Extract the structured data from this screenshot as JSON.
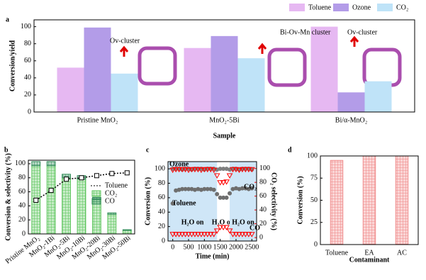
{
  "chart_data": [
    {
      "type": "bar",
      "label": "a",
      "categories": [
        "Pristine MnO₂",
        "MnO₂-5Bi",
        "Bi/α-MnO₂"
      ],
      "series": [
        {
          "name": "Toluene",
          "color": "#e6b8f2",
          "values": [
            52,
            75,
            100
          ]
        },
        {
          "name": "Ozone",
          "color": "#b39ce8",
          "values": [
            99,
            89,
            23
          ]
        },
        {
          "name": "CO₂",
          "color": "#bfe3f8",
          "values": [
            45,
            63,
            36
          ]
        }
      ],
      "ylim": [
        0,
        108
      ],
      "yticks": [
        0,
        20,
        40,
        60,
        80,
        100
      ],
      "ylabel": "Conversion/yield",
      "xlabel": "Sample",
      "legend": "top-right",
      "annotations": [
        "Ov-cluster",
        "Bi-Ov-Mn cluster",
        "Ov-cluster"
      ]
    },
    {
      "type": "combo",
      "label": "b",
      "categories": [
        "Pristine MnO₂",
        "MnO₂-1Bi",
        "MnO₂-5Bi",
        "MnO₂-10Bi",
        "MnO₂-20Bi",
        "MnO₂-30Bi",
        "MnO₂-50Bi"
      ],
      "series": [
        {
          "name": "Toluene",
          "color": "#000000",
          "kind": "line",
          "values": [
            48,
            62,
            78,
            80,
            83,
            86,
            87
          ]
        },
        {
          "name": "CO₂",
          "color": "#5cc45c",
          "kind": "bar",
          "values": [
            97,
            97,
            80,
            78,
            49,
            28,
            5
          ]
        },
        {
          "name": "CO",
          "color": "#2e8b57",
          "kind": "bar",
          "values": [
            6,
            6,
            5,
            5,
            3,
            2,
            1
          ]
        }
      ],
      "stacked": true,
      "hatch": true,
      "ylim": [
        0,
        105
      ],
      "yticks": [
        0,
        20,
        40,
        60,
        80,
        100
      ],
      "ylabel": "Conversion & selectivity (%)",
      "legend": "right"
    },
    {
      "type": "scatter",
      "label": "c",
      "x": [
        0,
        100,
        200,
        300,
        400,
        500,
        600,
        700,
        800,
        900,
        1000,
        1100,
        1200,
        1300,
        1400,
        1500,
        1600,
        1700,
        1800,
        1900,
        2000,
        2100,
        2200,
        2300,
        2400,
        2500
      ],
      "series": [
        {
          "name": "Ozone",
          "color": "#7f7f7f",
          "marker": "circle",
          "values": [
            100,
            100,
            100,
            99,
            100,
            100,
            99,
            100,
            100,
            100,
            99,
            100,
            100,
            100,
            99,
            100,
            100,
            100,
            99,
            100,
            100,
            99,
            100,
            100,
            100,
            99
          ]
        },
        {
          "name": "Toluene",
          "color": "#6e6e6e",
          "marker": "circle",
          "values": [
            52,
            70,
            71,
            72,
            72,
            72,
            72,
            71,
            72,
            71,
            72,
            72,
            72,
            71,
            65,
            60,
            60,
            60,
            66,
            72,
            73,
            72,
            73,
            73,
            72,
            73
          ]
        },
        {
          "name": "CO₂",
          "color": "#ff0000",
          "marker": "triangle-open",
          "axis": "y2",
          "values": [
            98,
            99,
            99,
            99,
            99,
            98,
            99,
            99,
            99,
            98,
            99,
            99,
            99,
            98,
            90,
            80,
            80,
            81,
            90,
            99,
            99,
            98,
            99,
            99,
            99,
            99
          ]
        },
        {
          "name": "CO",
          "color": "#ff0000",
          "marker": "triangle-open",
          "axis": "y2",
          "values": [
            5,
            5,
            5,
            5,
            5,
            5,
            5,
            5,
            5,
            5,
            5,
            5,
            5,
            5,
            10,
            15,
            15,
            15,
            10,
            5,
            5,
            5,
            5,
            5,
            5,
            5
          ]
        }
      ],
      "regions": [
        {
          "label": "H₂O on",
          "x": [
            -150,
            1400
          ],
          "shaded": true
        },
        {
          "label": "H₂O off",
          "x": [
            1400,
            1800
          ],
          "shaded": false
        },
        {
          "label": "H₂O on",
          "x": [
            1800,
            2650
          ],
          "shaded": true
        }
      ],
      "xlim": [
        -150,
        2650
      ],
      "xticks": [
        0,
        500,
        1000,
        1500,
        2000,
        2500
      ],
      "ylim": [
        0,
        110
      ],
      "yticks": [
        0,
        20,
        40,
        60,
        80,
        100
      ],
      "y2lim": [
        -5,
        110
      ],
      "y2ticks": [
        0,
        20,
        40,
        60,
        80,
        100
      ],
      "y2color": "#ff0000",
      "xlabel": "Time (min)",
      "ylabel": "Conversion (%)",
      "y2label": "CO₂ selectivity (%)"
    },
    {
      "type": "bar",
      "label": "d",
      "categories": [
        "Toluene",
        "EA",
        "AC"
      ],
      "series": [
        {
          "color": "#f08a8a",
          "values": [
            95,
            100,
            100
          ]
        }
      ],
      "hatch": true,
      "ylim": [
        0,
        100
      ],
      "yticks": [
        0,
        25,
        50,
        75,
        100
      ],
      "xlabel": "Contaminant",
      "ylabel": "Conversion (%)"
    }
  ]
}
